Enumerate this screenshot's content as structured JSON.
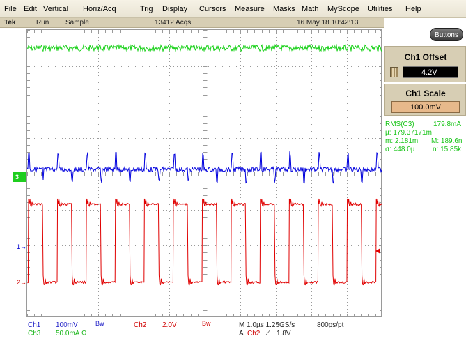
{
  "menu": {
    "items": [
      "File",
      "Edit",
      "Vertical",
      "Horiz/Acq",
      "Trig",
      "Display",
      "Cursors",
      "Measure",
      "Masks",
      "Math",
      "MyScope",
      "Utilities",
      "Help"
    ]
  },
  "status": {
    "brand": "Tek",
    "run_state": "Run",
    "acq_mode": "Sample",
    "acq_count": "13412 Acqs",
    "datetime": "16 May 18 10:42:13"
  },
  "panel": {
    "buttons_label": "Buttons",
    "offset_title": "Ch1 Offset",
    "offset_value": "4.2V",
    "scale_title": "Ch1 Scale",
    "scale_value": "100.0mV"
  },
  "measurements": {
    "name": "RMS(C3)",
    "value": "179.8mA",
    "mean": "µ: 179.37171m",
    "min": "m: 2.181m",
    "max": "M: 189.6n",
    "std": "σ: 448.0µ",
    "count": "n: 15.85k"
  },
  "markers": {
    "ch3": "3",
    "ch1": "1",
    "ch2": "2"
  },
  "readout": {
    "ch1_label": "Ch1",
    "ch1_scale": "100mV",
    "ch1_bw": "Bw",
    "ch2_label": "Ch2",
    "ch2_scale": "2.0V",
    "ch2_bw": "Bw",
    "ch3_label": "Ch3",
    "ch3_scale": "50.0mA",
    "ch3_unit": "Ω",
    "horiz": "M 1.0µs 1.25GS/s",
    "record": "800ps/pt",
    "trigger_a": "A",
    "trigger_src": "Ch2",
    "trigger_slope": "⟋",
    "trigger_level": "1.8V"
  },
  "colors": {
    "ch1": "#0000dd",
    "ch2": "#e00000",
    "ch3": "#16d016",
    "grid": "#9a9a9a"
  }
}
